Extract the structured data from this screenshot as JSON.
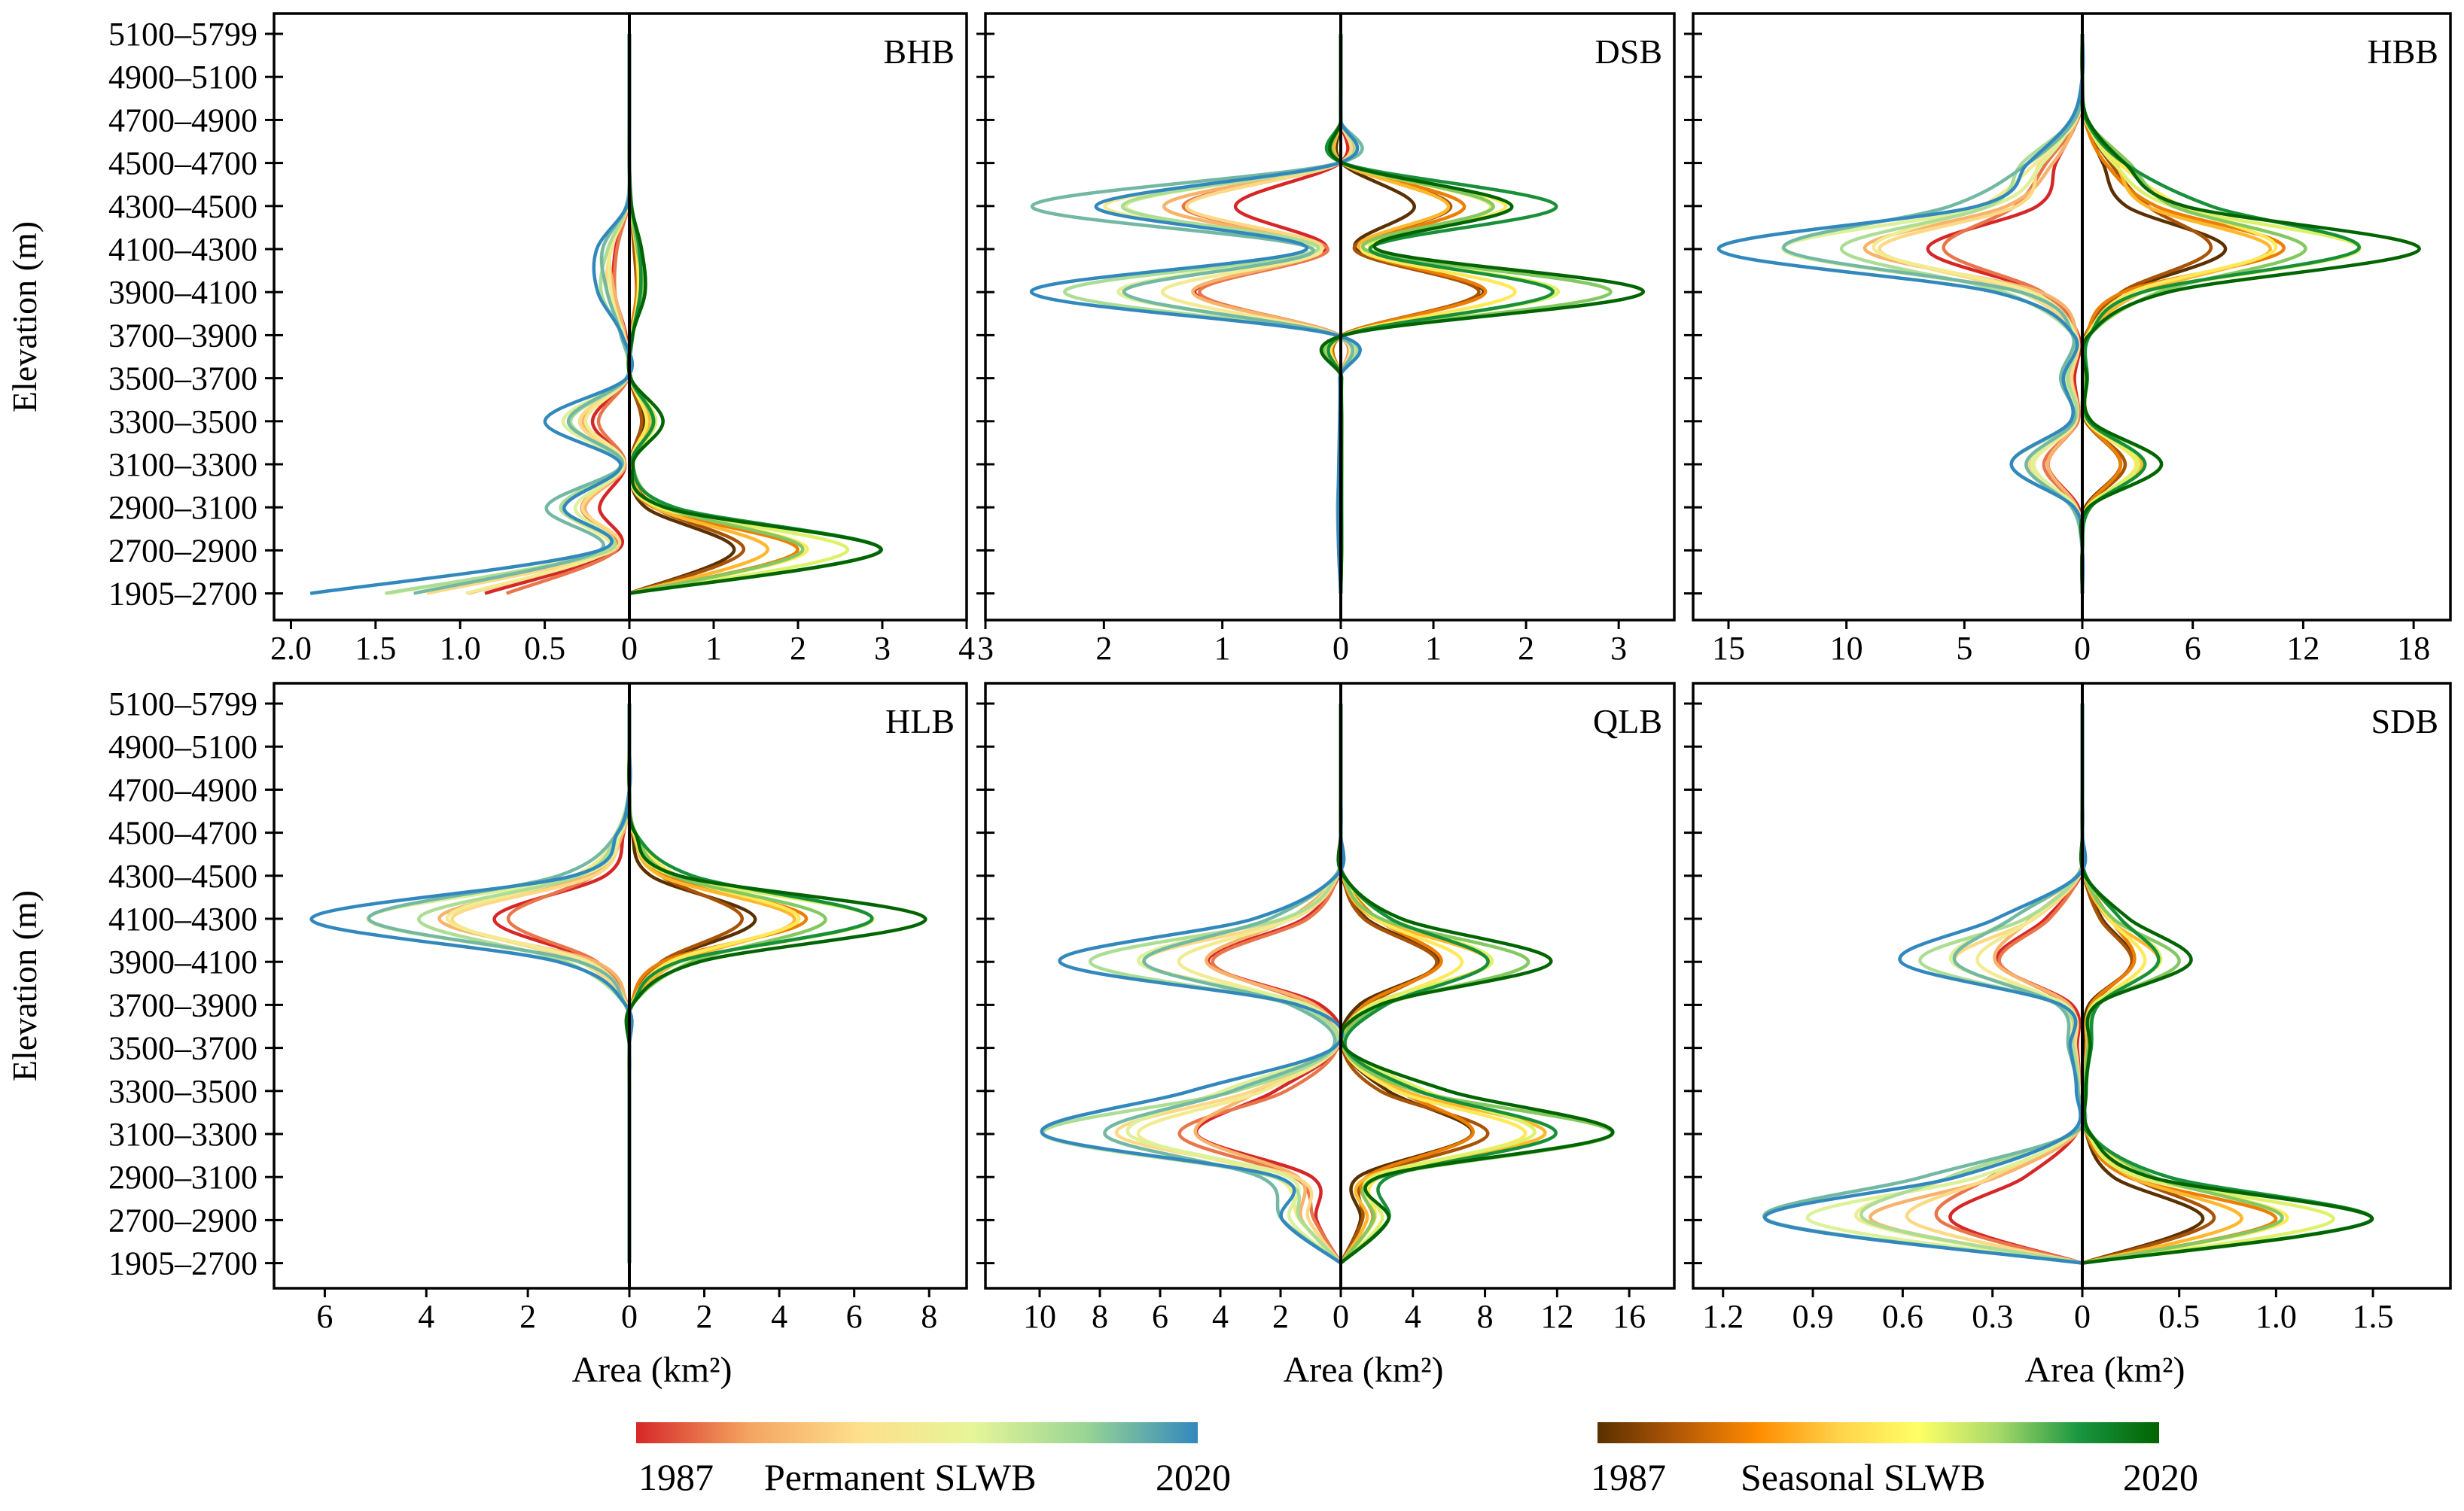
{
  "chart_data": {
    "type": "line",
    "elevation_bands": [
      "1905–2700",
      "2700–2900",
      "2900–3100",
      "3100–3300",
      "3300–3500",
      "3500–3700",
      "3700–3900",
      "3900–4100",
      "4100–4300",
      "4300–4500",
      "4500–4700",
      "4700–4900",
      "4900–5100",
      "5100–5799"
    ],
    "ylabel": "Elevation (m)",
    "xlabel": "Area (km²)",
    "legends": [
      {
        "start": "1987",
        "label": "Permanent SLWB",
        "end": "2020",
        "colors": [
          "#d62728",
          "#f4a460",
          "#fee08b",
          "#e6f598",
          "#99d594",
          "#3288bd"
        ]
      },
      {
        "start": "1987",
        "label": "Seasonal SLWB",
        "end": "2020",
        "colors": [
          "#5a3000",
          "#b35806",
          "#ff8c00",
          "#ffd24a",
          "#ffff66",
          "#a6d96a",
          "#1a9641",
          "#006400"
        ]
      }
    ],
    "panels": [
      {
        "name": "BHB",
        "left_max": 2.1,
        "right_max": 4,
        "left_ticks": [
          2.0,
          1.5,
          1.0,
          0.5
        ],
        "right_ticks": [
          1,
          2,
          3,
          4
        ],
        "left_labels": [
          "2.0",
          "1.5",
          "1.0",
          "0.5"
        ],
        "right_labels": [
          "1",
          "2",
          "3",
          "4"
        ],
        "left_profile": [
          1.9,
          0.2,
          0.55,
          0.06,
          0.5,
          0.02,
          0.06,
          0.2,
          0.2,
          0.02,
          0.0,
          0.0,
          0.0,
          0.0
        ],
        "right_profile": [
          0.0,
          3.4,
          0.6,
          0.05,
          0.4,
          0.02,
          0.05,
          0.2,
          0.15,
          0.03,
          0.0,
          0.0,
          0.0,
          0.0
        ]
      },
      {
        "name": "DSB",
        "left_max": 3.0,
        "right_max": 3.6,
        "left_ticks": [
          3,
          2,
          1
        ],
        "right_ticks": [
          1,
          2,
          3
        ],
        "left_labels": [
          "3",
          "2",
          "1"
        ],
        "right_labels": [
          "1",
          "2",
          "3"
        ],
        "left_profile": [
          0.0,
          0.02,
          0.03,
          0.02,
          0.01,
          0.01,
          0.05,
          2.8,
          0.3,
          2.8,
          0.02,
          0.0,
          0.0,
          0.0
        ],
        "right_profile": [
          0.0,
          0.01,
          0.01,
          0.01,
          0.01,
          0.01,
          0.05,
          3.5,
          0.4,
          2.5,
          0.03,
          0.0,
          0.0,
          0.0
        ]
      },
      {
        "name": "HBB",
        "left_max": 16.5,
        "right_max": 20,
        "left_ticks": [
          15,
          10,
          5
        ],
        "right_ticks": [
          6,
          12,
          18
        ],
        "left_labels": [
          "15",
          "10",
          "5"
        ],
        "right_labels": [
          "6",
          "12",
          "18"
        ],
        "left_profile": [
          0.0,
          0.0,
          0.5,
          3.5,
          0.5,
          1.0,
          0.5,
          4.0,
          16.0,
          6.0,
          3.0,
          0.5,
          0.0,
          0.0
        ],
        "right_profile": [
          0.0,
          0.0,
          0.5,
          5.0,
          0.5,
          0.3,
          0.5,
          5.0,
          19.0,
          7.5,
          3.0,
          0.3,
          0.0,
          0.0
        ]
      },
      {
        "name": "HLB",
        "left_max": 7,
        "right_max": 9,
        "left_ticks": [
          6,
          4,
          2
        ],
        "right_ticks": [
          2,
          4,
          6,
          8
        ],
        "left_labels": [
          "6",
          "4",
          "2"
        ],
        "right_labels": [
          "2",
          "4",
          "6",
          "8"
        ],
        "left_profile": [
          0.0,
          0.0,
          0.0,
          0.0,
          0.0,
          0.0,
          0.1,
          1.5,
          6.5,
          1.5,
          0.3,
          0.0,
          0.0,
          0.0
        ],
        "right_profile": [
          0.0,
          0.0,
          0.0,
          0.0,
          0.0,
          0.0,
          0.1,
          2.0,
          8.2,
          1.8,
          0.2,
          0.0,
          0.0,
          0.0
        ]
      },
      {
        "name": "QLB",
        "left_max": 11.8,
        "right_max": 18.5,
        "left_ticks": [
          10,
          8,
          6,
          4,
          2
        ],
        "right_ticks": [
          4,
          8,
          12,
          16
        ],
        "left_labels": [
          "10",
          "8",
          "6",
          "4",
          "2"
        ],
        "right_labels": [
          "4",
          "8",
          "12",
          "16"
        ],
        "left_profile": [
          0.0,
          2.2,
          3.0,
          11.5,
          5.0,
          0.3,
          2.0,
          10.0,
          3.0,
          0.2,
          0.0,
          0.0,
          0.0,
          0.0
        ],
        "right_profile": [
          0.0,
          3.0,
          3.0,
          17.5,
          6.0,
          0.3,
          3.0,
          12.5,
          3.5,
          0.2,
          0.0,
          0.0,
          0.0,
          0.0
        ]
      },
      {
        "name": "SDB",
        "left_max": 1.3,
        "right_max": 1.9,
        "left_ticks": [
          1.2,
          0.9,
          0.6,
          0.3
        ],
        "right_ticks": [
          0.5,
          1.0,
          1.5
        ],
        "left_labels": [
          "1.2",
          "0.9",
          "0.6",
          "0.3"
        ],
        "right_labels": [
          "0.5",
          "1.0",
          "1.5"
        ],
        "left_profile": [
          0.0,
          1.2,
          0.6,
          0.05,
          0.02,
          0.05,
          0.1,
          0.65,
          0.3,
          0.02,
          0.0,
          0.0,
          0.0,
          0.0
        ],
        "right_profile": [
          0.0,
          1.7,
          0.5,
          0.05,
          0.02,
          0.05,
          0.1,
          0.6,
          0.25,
          0.02,
          0.0,
          0.0,
          0.0,
          0.0
        ]
      }
    ]
  }
}
